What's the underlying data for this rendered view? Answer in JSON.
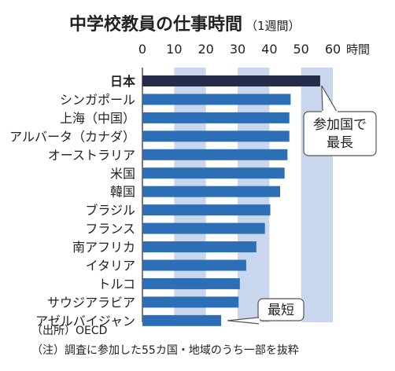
{
  "chart_data": {
    "type": "bar",
    "orientation": "horizontal",
    "title": "中学校教員の仕事時間",
    "title_note": "（1週間）",
    "unit": "時間",
    "xlim": [
      0,
      60
    ],
    "ticks": [
      0,
      10,
      20,
      30,
      40,
      50,
      60
    ],
    "banded_intervals": [
      [
        10,
        20
      ],
      [
        30,
        40
      ],
      [
        50,
        60
      ]
    ],
    "categories": [
      "日本",
      "シンガポール",
      "上海（中国）",
      "アルバータ（カナダ）",
      "オーストラリア",
      "米国",
      "韓国",
      "ブラジル",
      "フランス",
      "南アフリカ",
      "イタリア",
      "トルコ",
      "サウジアラビア",
      "アゼルバイジャン"
    ],
    "values": [
      56.0,
      46.7,
      46.3,
      46.3,
      45.7,
      44.8,
      43.4,
      40.3,
      38.6,
      35.9,
      32.7,
      30.7,
      30.3,
      24.8
    ],
    "colors": {
      "highlight": "#252b4a",
      "bar": "#2d6fb7",
      "band": "#c9d7ee"
    },
    "annotations": [
      {
        "lines": [
          "参加国で",
          "最長"
        ],
        "category": "日本"
      },
      {
        "lines": [
          "最短"
        ],
        "category": "アゼルバイジャン"
      }
    ],
    "footnotes": [
      "（出所）OECD",
      "（注）調査に参加した55カ国・地域のうち一部を抜粋"
    ]
  }
}
